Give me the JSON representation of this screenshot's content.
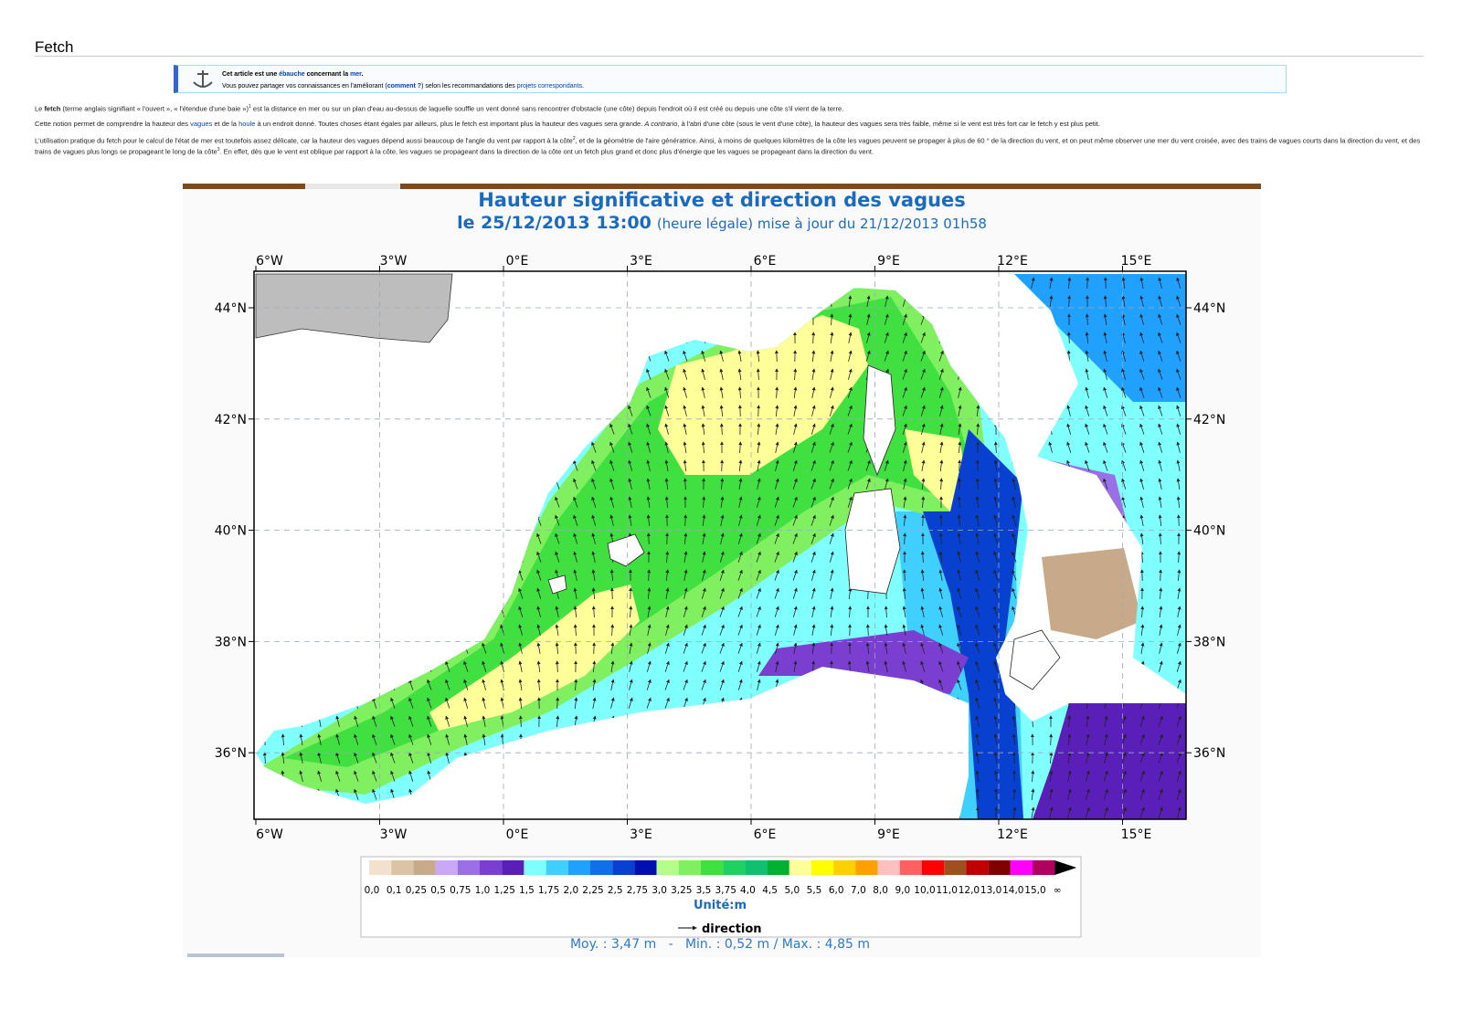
{
  "header": {
    "title": "Fetch"
  },
  "stub": {
    "lines": [
      {
        "segments": [
          {
            "text": "Cet article est une ",
            "style": "bold"
          },
          {
            "text": "ébauche",
            "style": "boldlink"
          },
          {
            "text": " concernant la ",
            "style": "bold"
          },
          {
            "text": "mer",
            "style": "boldlink"
          },
          {
            "text": ".",
            "style": "bold"
          }
        ]
      },
      {
        "segments": [
          {
            "text": "Vous pouvez partager vos connaissances en l'améliorant ("
          },
          {
            "text": "comment ?",
            "style": "boldlink"
          },
          {
            "text": ") selon les recommandations des "
          },
          {
            "text": "projets correspondants",
            "style": "link"
          },
          {
            "text": "."
          }
        ]
      }
    ]
  },
  "paragraphs": [
    {
      "segments": [
        {
          "text": "Le "
        },
        {
          "text": "fetch",
          "style": "bold"
        },
        {
          "text": " (terme anglais signifiant « l'ouvert », « l'étendue d'une baie »)"
        },
        {
          "text": "1",
          "style": "sup"
        },
        {
          "text": " est la distance en mer ou sur un plan d'eau au-dessus de laquelle souffle un vent donné sans rencontrer d'obstacle (une côte) depuis l'endroit où il est créé ou depuis une côte s'il vient de la terre."
        }
      ]
    },
    {
      "segments": [
        {
          "text": "Cette notion permet de comprendre la hauteur des "
        },
        {
          "text": "vagues",
          "style": "link"
        },
        {
          "text": " et de la "
        },
        {
          "text": "houle",
          "style": "link"
        },
        {
          "text": " à un endroit donné. Toutes choses étant égales par ailleurs, plus le fetch est important plus la hauteur des vagues sera grande. "
        },
        {
          "text": "A contrario",
          "style": "italic"
        },
        {
          "text": ", à l'abri d'une côte (sous le vent d'une côte), la hauteur des vagues sera très faible, même si le vent est très fort car le fetch y est plus petit."
        }
      ]
    },
    {
      "segments": [
        {
          "text": "L'utilisation pratique du fetch pour le calcul de l'état de mer est toutefois assez délicate, car la hauteur des vagues dépend aussi beaucoup de l'angle du vent par rapport à la côte"
        },
        {
          "text": "2",
          "style": "sup"
        },
        {
          "text": ", et de la géométrie de l'aire génératrice. Ainsi, à moins de quelques kilomètres de la côte les vagues peuvent se propager à plus de 60 ° de la direction du vent, et on peut même observer une mer du vent croisée, avec des trains de vagues courts dans la direction du vent, et des trains de vagues plus longs se propageant le long de la côte"
        },
        {
          "text": "3",
          "style": "sup"
        },
        {
          "text": ". En effet, dès que le vent est oblique par rapport à la côte, les vagues se propageant dans la direction de la côte ont un fetch plus grand et donc plus d'énergie que les vagues se propageant dans la direction du vent."
        }
      ]
    }
  ],
  "figure": {
    "title": "Hauteur significative et direction des vagues",
    "date": "le 25/12/2013 13:00",
    "note": "(heure légale) mise à jour du 21/12/2013 01h58",
    "lon_labels": [
      "6°W",
      "3°W",
      "0°E",
      "3°E",
      "6°E",
      "9°E",
      "12°E",
      "15°E"
    ],
    "lat_labels": [
      "44°N",
      "42°N",
      "40°N",
      "38°N",
      "36°N"
    ],
    "scale_colors": [
      "#f3e1cd",
      "#dcc3a5",
      "#c8a98a",
      "#c9a8f5",
      "#9b6fe6",
      "#7a3fd0",
      "#5a1fb8",
      "#80ffff",
      "#40d0ff",
      "#20a0ff",
      "#1070e8",
      "#0840d0",
      "#0010b0",
      "#b4ff8c",
      "#80f060",
      "#40e040",
      "#20d060",
      "#10c070",
      "#00b030",
      "#ffff99",
      "#ffff00",
      "#ffd000",
      "#ffa000",
      "#ffc0c0",
      "#ff6060",
      "#ff0000",
      "#a05020",
      "#c00000",
      "#800000",
      "#ff00ff",
      "#b00060"
    ],
    "scale_labels": [
      "0,0",
      "0,1",
      "0,25",
      "0,5",
      "0,75",
      "1,0",
      "1,25",
      "1,5",
      "1,75",
      "2,0",
      "2,25",
      "2,5",
      "2,75",
      "3,0",
      "3,25",
      "3,5",
      "3,75",
      "4,0",
      "4,5",
      "5,0",
      "5,5",
      "6,0",
      "7,0",
      "8,0",
      "9,0",
      "10,0",
      "11,0",
      "12,0",
      "13,0",
      "14,0",
      "15,0",
      "∞"
    ],
    "unit": "Unité:m",
    "direction": "direction",
    "stats": "Moy. : 3,47 m   -   Min. : 0,52 m / Max. : 4,85 m"
  }
}
